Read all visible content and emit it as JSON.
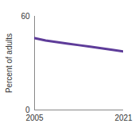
{
  "chart_data": {
    "type": "line",
    "y_label": "Percent of adults",
    "x": [
      2005,
      2007,
      2009,
      2011,
      2013,
      2015,
      2017,
      2019,
      2021
    ],
    "series": [
      {
        "color": "#5e3c99",
        "values": [
          46,
          44.5,
          43.5,
          42.5,
          41.5,
          40.5,
          39.5,
          38.5,
          37.5
        ]
      }
    ],
    "xlim": [
      2005,
      2021
    ],
    "xticks": [
      2005,
      2021
    ],
    "ylim": [
      0,
      60
    ],
    "yticks": [
      0,
      60
    ],
    "grid": false
  }
}
